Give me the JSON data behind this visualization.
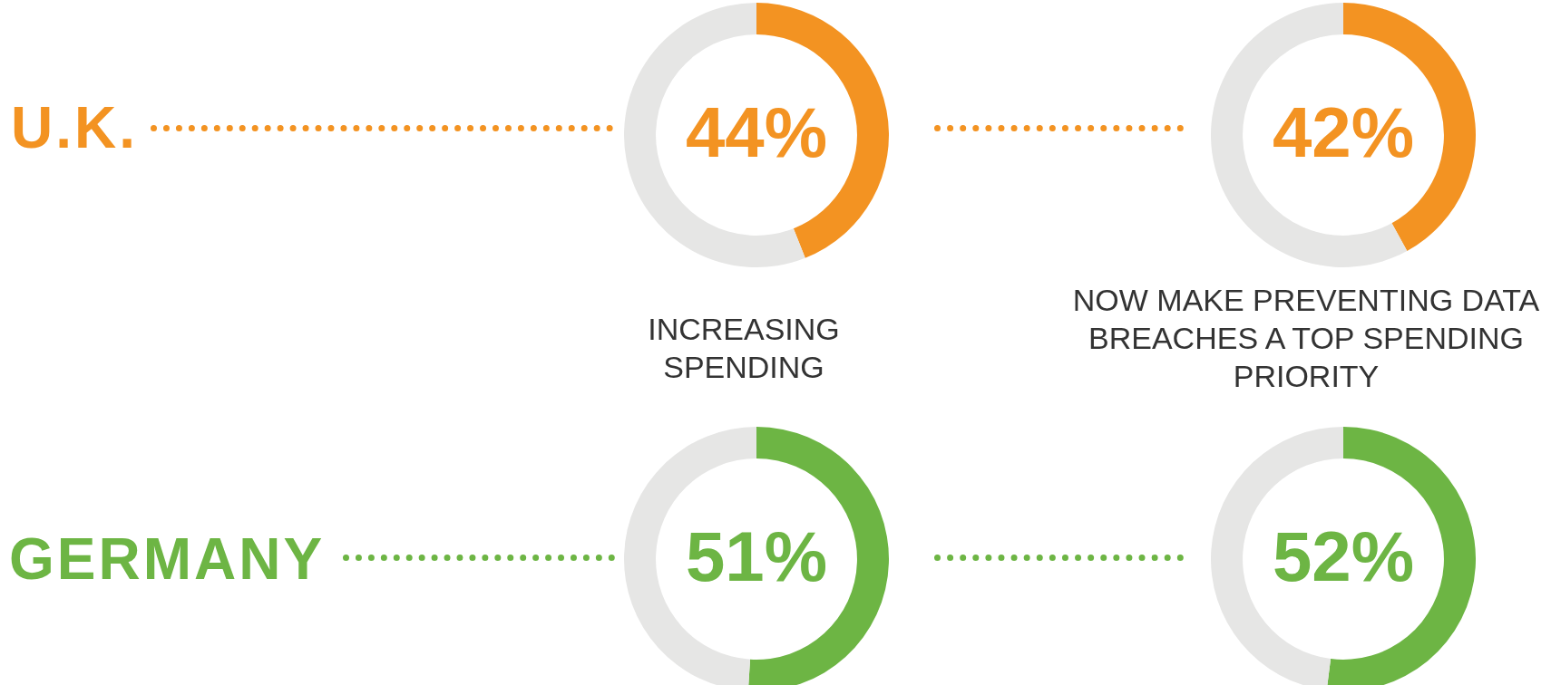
{
  "chart_data": [
    {
      "type": "other",
      "annotations": [
        "U.K."
      ]
    },
    {
      "type": "donut",
      "categories": [
        null,
        null
      ],
      "values": [
        44,
        56
      ],
      "colors": [
        "#f39322",
        "#e6e6e5"
      ],
      "value_labels": [
        "44%",
        null
      ]
    },
    {
      "type": "donut",
      "categories": [
        null,
        null
      ],
      "values": [
        42,
        58
      ],
      "colors": [
        "#f39322",
        "#e6e6e5"
      ],
      "value_labels": [
        "42%",
        null
      ]
    },
    {
      "type": "other",
      "annotations": [
        "INCREASING SPENDING",
        "NOW MAKE PREVENTING DATA BREACHES A TOP SPENDING PRIORITY"
      ]
    },
    {
      "type": "other",
      "annotations": [
        "GERMANY"
      ]
    },
    {
      "type": "donut",
      "categories": [
        null,
        null
      ],
      "values": [
        51,
        49
      ],
      "colors": [
        "#6db544",
        "#e6e6e5"
      ],
      "value_labels": [
        "51%",
        null
      ]
    },
    {
      "type": "donut",
      "categories": [
        null,
        null
      ],
      "values": [
        52,
        48
      ],
      "colors": [
        "#6db544",
        "#e6e6e5"
      ],
      "value_labels": [
        "52%",
        null
      ]
    }
  ]
}
